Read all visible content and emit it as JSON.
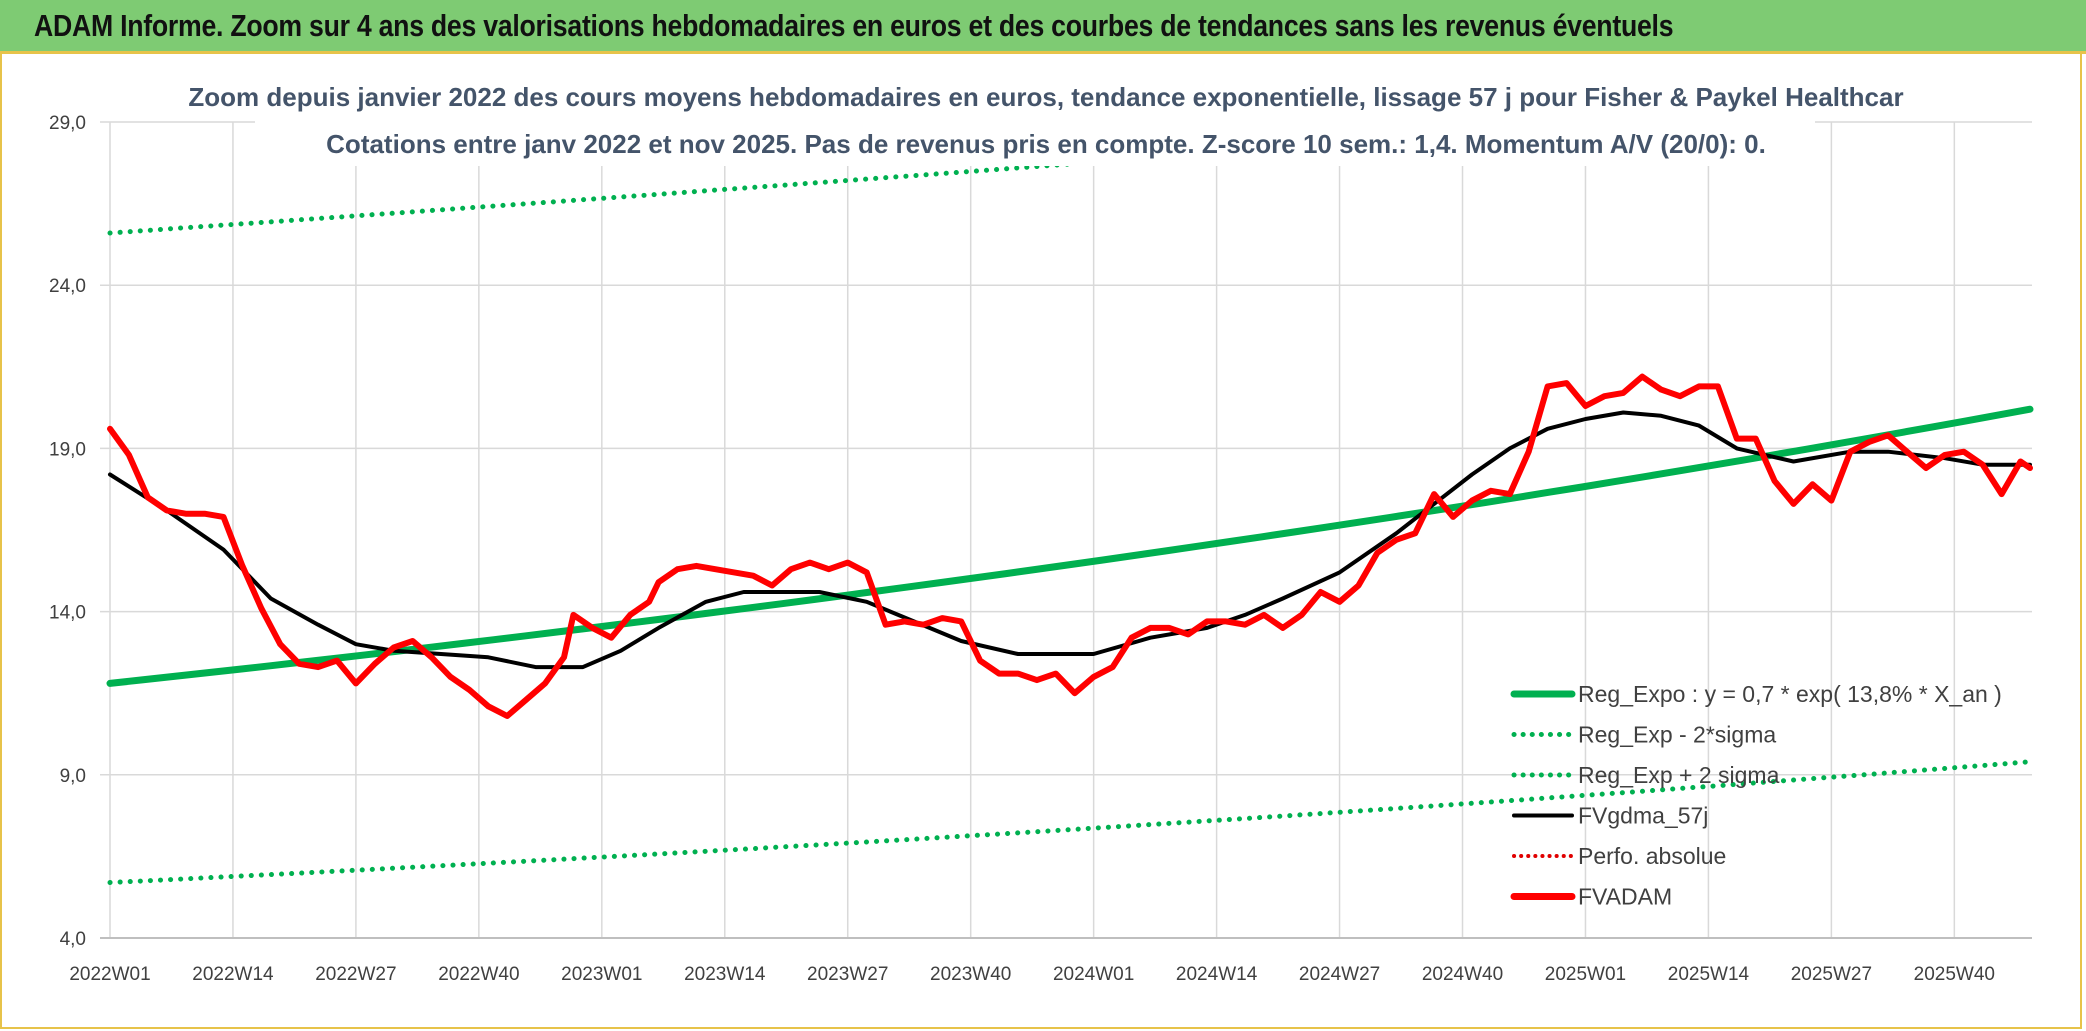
{
  "header": {
    "title": "ADAM Informe. Zoom sur 4 ans des valorisations hebdomadaires en euros et des courbes de tendances sans les revenus éventuels"
  },
  "colors": {
    "banner_bg": "#7ecb73",
    "border_gold": "#e7c34a",
    "reg_green": "#00b050",
    "fvadam_red": "#ff0000",
    "fvgdma_black": "#000000",
    "perfo_red": "#e00000",
    "subtitle": "#44546a"
  },
  "chart_data": {
    "type": "line",
    "title_lines": [
      "Zoom depuis janvier 2022 des cours moyens hebdomadaires en euros, tendance exponentielle, lissage 57 j pour Fisher & Paykel Healthcar",
      "Cotations entre janv 2022 et nov 2025. Pas de revenus pris en compte. Z-score 10 sem.: 1,4. Momentum A/V (20/0): 0."
    ],
    "y_ticks": [
      "4,0",
      "9,0",
      "14,0",
      "19,0",
      "24,0",
      "29,0"
    ],
    "y_tick_values": [
      4,
      9,
      14,
      19,
      24,
      29
    ],
    "ylim": [
      4,
      29
    ],
    "x_ticks": [
      "2022W01",
      "2022W14",
      "2022W27",
      "2022W40",
      "2023W01",
      "2023W14",
      "2023W27",
      "2023W40",
      "2024W01",
      "2024W14",
      "2024W27",
      "2024W40",
      "2025W01",
      "2025W14",
      "2025W27",
      "2025W40"
    ],
    "x_range_weeks": [
      0,
      203
    ],
    "grid": true,
    "legend_position": "bottom-right",
    "legend": [
      {
        "label": "Reg_Expo : y = 0,7 * exp( 13,8% *  X_an )",
        "style": "solid-green"
      },
      {
        "label": "Reg_Exp - 2*sigma",
        "style": "dotted-green"
      },
      {
        "label": "Reg_Exp + 2 sigma",
        "style": "dotted-green"
      },
      {
        "label": "FVgdma_57j",
        "style": "solid-black"
      },
      {
        "label": "Perfo. absolue",
        "style": "dotted-red"
      },
      {
        "label": "FVADAM",
        "style": "solid-red"
      }
    ],
    "series": [
      {
        "name": "Reg_Expo : y = 0,7 * exp( 13,8% *  X_an )",
        "x": [
          0,
          203
        ],
        "y": [
          11.8,
          20.2
        ]
      },
      {
        "name": "Reg_Exp - 2*sigma",
        "x": [
          0,
          203
        ],
        "y": [
          5.7,
          9.4
        ]
      },
      {
        "name": "Reg_Exp + 2 sigma",
        "x": [
          0,
          203
        ],
        "y": [
          25.6,
          30.0
        ]
      },
      {
        "name": "FVgdma_57j",
        "x": [
          0,
          6,
          12,
          17,
          22,
          26,
          30,
          35,
          40,
          45,
          50,
          54,
          58,
          63,
          67,
          70,
          75,
          80,
          85,
          90,
          96,
          100,
          104,
          110,
          116,
          120,
          124,
          130,
          136,
          140,
          144,
          148,
          152,
          156,
          160,
          164,
          168,
          172,
          178,
          184,
          188,
          194,
          198,
          203
        ],
        "y": [
          18.2,
          17.1,
          15.9,
          14.4,
          13.6,
          13.0,
          12.8,
          12.7,
          12.6,
          12.3,
          12.3,
          12.8,
          13.5,
          14.3,
          14.6,
          14.6,
          14.6,
          14.3,
          13.7,
          13.1,
          12.7,
          12.7,
          12.7,
          13.2,
          13.5,
          13.9,
          14.4,
          15.2,
          16.4,
          17.3,
          18.2,
          19.0,
          19.6,
          19.9,
          20.1,
          20.0,
          19.7,
          19.0,
          18.6,
          18.9,
          18.9,
          18.7,
          18.5,
          18.5
        ]
      },
      {
        "name": "FVADAM",
        "x": [
          0,
          2,
          4,
          6,
          8,
          10,
          12,
          14,
          16,
          18,
          20,
          22,
          24,
          26,
          28,
          30,
          32,
          34,
          36,
          38,
          40,
          42,
          44,
          46,
          48,
          49,
          51,
          53,
          55,
          57,
          58,
          60,
          62,
          64,
          66,
          68,
          70,
          72,
          74,
          76,
          78,
          80,
          82,
          84,
          86,
          88,
          90,
          92,
          94,
          96,
          98,
          100,
          102,
          104,
          106,
          108,
          110,
          112,
          114,
          116,
          118,
          120,
          122,
          124,
          126,
          128,
          130,
          132,
          134,
          136,
          138,
          140,
          142,
          144,
          146,
          148,
          150,
          152,
          154,
          156,
          158,
          160,
          162,
          164,
          166,
          168,
          170,
          172,
          174,
          176,
          178,
          180,
          182,
          184,
          186,
          188,
          190,
          192,
          194,
          196,
          198,
          200,
          202,
          203
        ],
        "y": [
          19.6,
          18.8,
          17.5,
          17.1,
          17.0,
          17.0,
          16.9,
          15.4,
          14.1,
          13.0,
          12.4,
          12.3,
          12.5,
          11.8,
          12.4,
          12.9,
          13.1,
          12.6,
          12.0,
          11.6,
          11.1,
          10.8,
          11.3,
          11.8,
          12.6,
          13.9,
          13.5,
          13.2,
          13.9,
          14.3,
          14.9,
          15.3,
          15.4,
          15.3,
          15.2,
          15.1,
          14.8,
          15.3,
          15.5,
          15.3,
          15.5,
          15.2,
          13.6,
          13.7,
          13.6,
          13.8,
          13.7,
          12.5,
          12.1,
          12.1,
          11.9,
          12.1,
          11.5,
          12.0,
          12.3,
          13.2,
          13.5,
          13.5,
          13.3,
          13.7,
          13.7,
          13.6,
          13.9,
          13.5,
          13.9,
          14.6,
          14.3,
          14.8,
          15.8,
          16.2,
          16.4,
          17.6,
          16.9,
          17.4,
          17.7,
          17.6,
          18.9,
          20.9,
          21.0,
          20.3,
          20.6,
          20.7,
          21.2,
          20.8,
          20.6,
          20.9,
          20.9,
          19.3,
          19.3,
          18.0,
          17.3,
          17.9,
          17.4,
          18.9,
          19.2,
          19.4,
          18.9,
          18.4,
          18.8,
          18.9,
          18.5,
          17.6,
          18.6,
          18.4
        ]
      }
    ]
  }
}
